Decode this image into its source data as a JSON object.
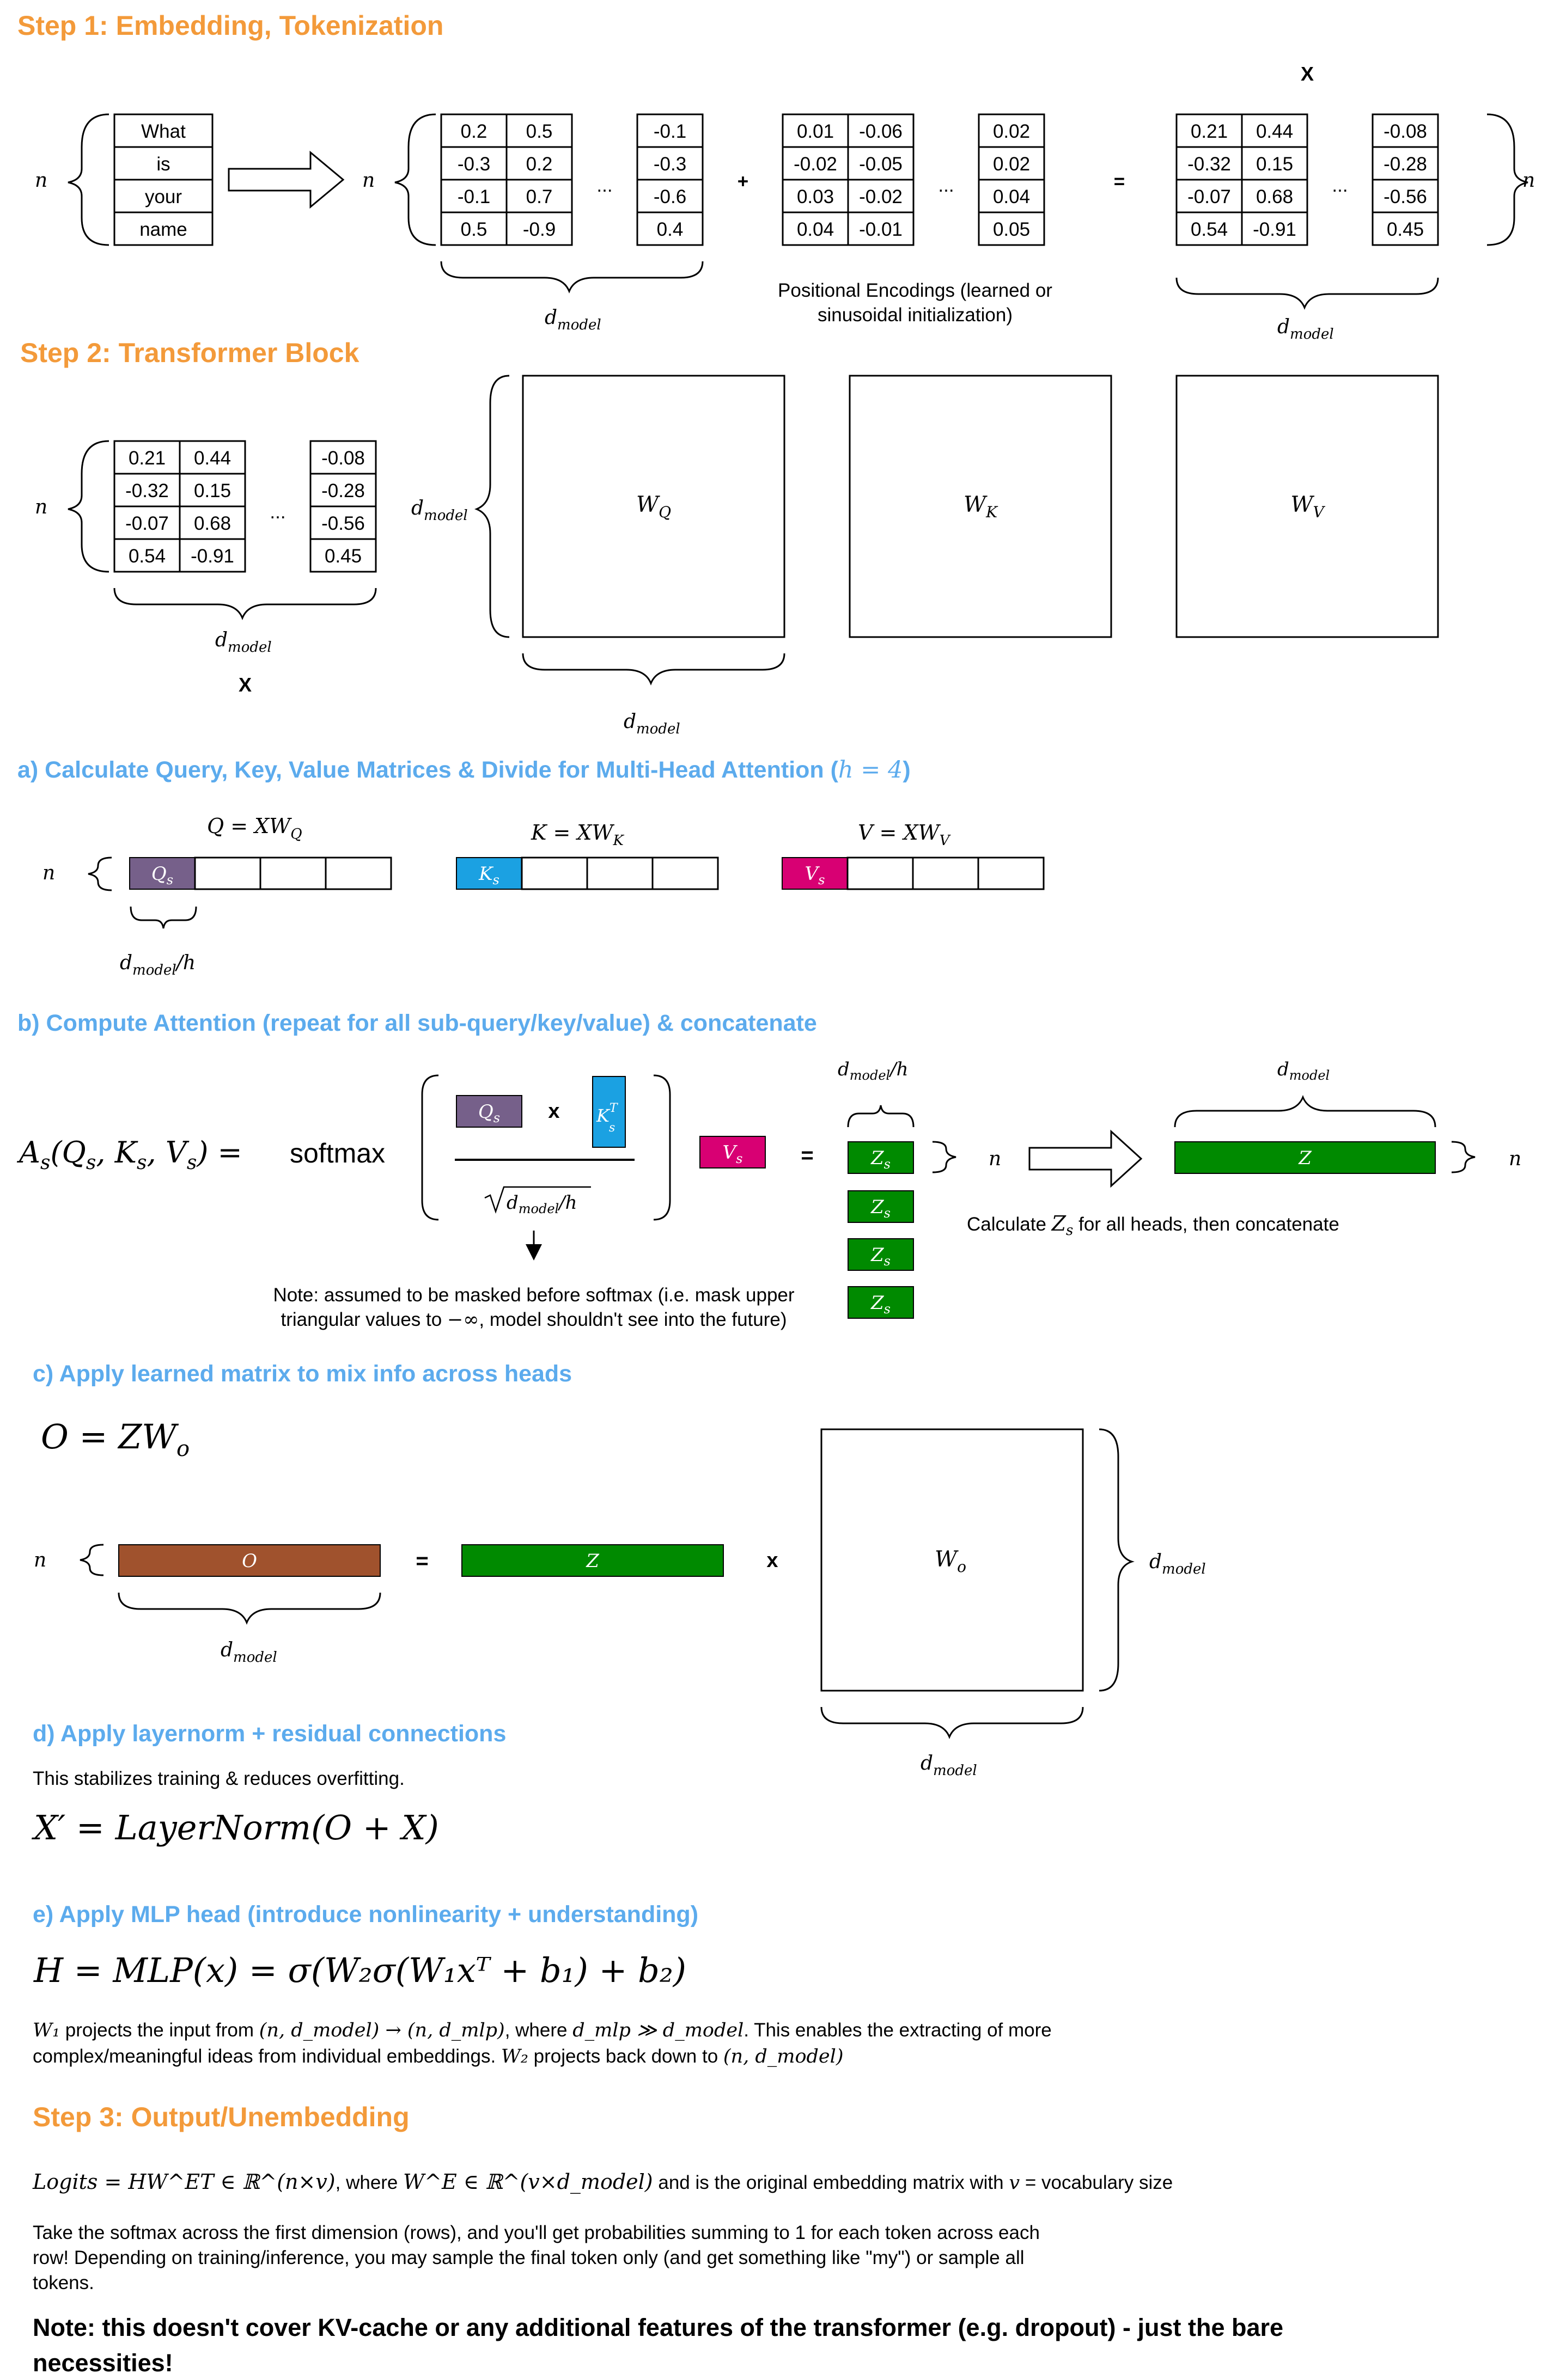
{
  "step1": {
    "title": "Step 1: Embedding, Tokenization",
    "tokens": [
      "What",
      "is",
      "your",
      "name"
    ],
    "n_label": "n",
    "embeddings": {
      "left": [
        [
          "0.2",
          "0.5"
        ],
        [
          "-0.3",
          "0.2"
        ],
        [
          "-0.1",
          "0.7"
        ],
        [
          "0.5",
          "-0.9"
        ]
      ],
      "right": [
        "-0.1",
        "-0.3",
        "-0.6",
        "0.4"
      ]
    },
    "positional": {
      "left": [
        [
          "0.01",
          "-0.06"
        ],
        [
          "-0.02",
          "-0.05"
        ],
        [
          "0.03",
          "-0.02"
        ],
        [
          "0.04",
          "-0.01"
        ]
      ],
      "right": [
        "0.02",
        "0.02",
        "0.04",
        "0.05"
      ],
      "caption_line1": "Positional Encodings (learned or",
      "caption_line2": "sinusoidal initialization)"
    },
    "result": {
      "left": [
        [
          "0.21",
          "0.44"
        ],
        [
          "-0.32",
          "0.15"
        ],
        [
          "-0.07",
          "0.68"
        ],
        [
          "0.54",
          "-0.91"
        ]
      ],
      "right": [
        "-0.08",
        "-0.28",
        "-0.56",
        "0.45"
      ],
      "label": "X"
    },
    "plus": "+",
    "equals": "=",
    "ellipsis": "...",
    "dmodel": "d",
    "dmodel_sub": "model"
  },
  "step2": {
    "title": "Step 2: Transformer Block",
    "x_label": "X",
    "weights": [
      {
        "name": "W",
        "sub": "Q"
      },
      {
        "name": "W",
        "sub": "K"
      },
      {
        "name": "W",
        "sub": "V"
      }
    ]
  },
  "section_a": {
    "heading": "a) Calculate Query, Key, Value Matrices & Divide for Multi-Head Attention (",
    "heading_h": "h = 4",
    "heading_close": ")",
    "q_formula": "Q = XW",
    "q_sub": "Q",
    "k_formula": "K = XW",
    "k_sub": "K",
    "v_formula": "V = XW",
    "v_sub": "V",
    "q_label": "Q",
    "k_label": "K",
    "v_label": "V",
    "s_sub": "s",
    "dmodel_over_h": "/h"
  },
  "section_b": {
    "heading": "b) Compute Attention (repeat for all sub-query/key/value) & concatenate",
    "formula_left": "A",
    "formula_args": "(Q",
    "formula_rest": "K",
    "formula_v": "V",
    "softmax": "softmax",
    "times": "x",
    "k_sup": "T",
    "sqrt_label": "d",
    "z_label": "Z",
    "z_big": "Z",
    "concat_caption_pre": "Calculate ",
    "concat_caption_post": " for all heads, then concatenate",
    "note_line1": "Note: assumed to be masked before softmax (i.e. mask upper",
    "note_line2_pre": "triangular values to ",
    "note_line2_inf": "−∞",
    "note_line2_post": ", model shouldn't see into the future)"
  },
  "section_c": {
    "heading": "c) Apply learned matrix to mix info across heads",
    "formula": "O = ZW",
    "formula_sub": "o",
    "o_label": "O",
    "z_label": "Z",
    "wo_label": "W",
    "wo_sub": "o"
  },
  "section_d": {
    "heading": "d) Apply layernorm + residual connections",
    "body": "This stabilizes training & reduces overfitting.",
    "formula": "X′ = LayerNorm(O + X)"
  },
  "section_e": {
    "heading": "e) Apply MLP head (introduce nonlinearity + understanding)",
    "formula": "H = MLP(x) = σ(W₂σ(W₁xᵀ + b₁) + b₂)",
    "body_line1_a": "W₁",
    "body_line1_b": " projects the input from ",
    "body_line1_c": "(n, d_model) → (n, d_mlp)",
    "body_line1_d": ", where ",
    "body_line1_e": "d_mlp ≫ d_model",
    "body_line1_f": ". This enables the extracting of more",
    "body_line2_a": "complex/meaningful ideas from individual embeddings. ",
    "body_line2_b": "W₂",
    "body_line2_c": " projects back down to ",
    "body_line2_d": "(n, d_model)"
  },
  "step3": {
    "title": "Step 3: Output/Unembedding",
    "logits_formula": "Logits = HW^ET ∈ ℝ^(n×v)",
    "logits_where": ", where ",
    "logits_we": "W^E ∈ ℝ^(v×d_model)",
    "logits_rest": " and is the original embedding matrix with ",
    "logits_v": "v",
    "logits_tail": " = vocabulary size",
    "para_line1": "Take the softmax across the first dimension (rows), and you'll get probabilities summing to 1 for each token across each",
    "para_line2": "row! Depending on training/inference, you may sample the final token only (and get something like \"my\") or sample all",
    "para_line3": "tokens.",
    "note_line1": "Note: this doesn't cover KV-cache or any additional features of the transformer (e.g. dropout) - just the bare",
    "note_line2": "necessities!"
  },
  "colors": {
    "orange": "#f39a3a",
    "blue": "#5cabed",
    "purple": "#76608a",
    "cyan": "#1ba1e2",
    "magenta": "#d80073",
    "green": "#008a00",
    "brown": "#a0522d"
  }
}
